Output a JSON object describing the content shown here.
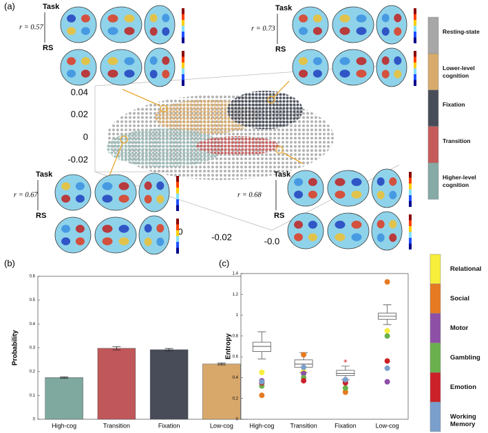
{
  "panel_labels": [
    "(a)",
    "(b)",
    "(c)"
  ],
  "panel_a": {
    "z_ticks": [
      "0.04",
      "0.02",
      "0",
      "-0.02"
    ],
    "floor_ticks": [
      "0",
      "-0.02",
      "-0.0"
    ],
    "brain_groups": [
      {
        "r": "r = 0.57",
        "labels": [
          "Task",
          "RS"
        ]
      },
      {
        "r": "r = 0.73",
        "labels": [
          "Task",
          "RS"
        ]
      },
      {
        "r": "r = 0.67",
        "labels": [
          "Task",
          "RS"
        ]
      },
      {
        "r": "r = 0.68",
        "labels": [
          "Task",
          "RS"
        ]
      }
    ],
    "legend": [
      {
        "name": "Resting-state",
        "color": "#a7a7a7"
      },
      {
        "name": "Lower-level cognition",
        "color": "#d8ab6c"
      },
      {
        "name": "Fixation",
        "color": "#474c59"
      },
      {
        "name": "Transition",
        "color": "#c65a5a"
      },
      {
        "name": "Higher-level cognition",
        "color": "#86aaa6"
      }
    ]
  },
  "chart_data": [
    {
      "type": "bar",
      "ylabel": "Probability",
      "categories": [
        "High-cog",
        "Transition",
        "Fixation",
        "Low-cog"
      ],
      "values": [
        0.175,
        0.298,
        0.292,
        0.232
      ],
      "errors": [
        0.003,
        0.007,
        0.005,
        0.004
      ],
      "colors": [
        "#7fa89f",
        "#c0575a",
        "#474c58",
        "#d8a86b"
      ],
      "ylim": [
        0,
        0.6
      ],
      "yticks": [
        0,
        0.1,
        0.2,
        0.3,
        0.4,
        0.5,
        0.6
      ]
    },
    {
      "type": "box",
      "ylabel": "Entropy",
      "categories": [
        "High-cog",
        "Transition",
        "Fixation",
        "Low-cog"
      ],
      "whislo": [
        0.58,
        0.45,
        0.38,
        0.91
      ],
      "q1": [
        0.65,
        0.5,
        0.42,
        0.96
      ],
      "med": [
        0.7,
        0.53,
        0.44,
        0.99
      ],
      "q3": [
        0.74,
        0.57,
        0.47,
        1.02
      ],
      "whishi": [
        0.84,
        0.64,
        0.51,
        1.1
      ],
      "fliers": [
        null,
        null,
        0.56,
        0.85
      ],
      "flier_color": "#e0242a",
      "ylim": [
        0,
        1.4
      ],
      "yticks": [
        0,
        0.2,
        0.4,
        0.6,
        0.8,
        1,
        1.2,
        1.4
      ],
      "series": [
        {
          "name": "Relational",
          "color": "#f6ee3a",
          "values": [
            0.45,
            0.46,
            0.27,
            0.85
          ]
        },
        {
          "name": "Social",
          "color": "#e67a22",
          "values": [
            0.23,
            0.62,
            0.26,
            1.32
          ]
        },
        {
          "name": "Motor",
          "color": "#8e4fa6",
          "values": [
            0.37,
            0.44,
            0.36,
            0.36
          ]
        },
        {
          "name": "Gambling",
          "color": "#6ab04c",
          "values": [
            0.32,
            0.4,
            0.3,
            0.8
          ]
        },
        {
          "name": "Emotion",
          "color": "#cc2128",
          "values": [
            0.35,
            0.37,
            0.35,
            0.56
          ]
        },
        {
          "name": "Working Memory",
          "color": "#7a9fcc",
          "values": [
            0.36,
            0.5,
            0.38,
            0.49
          ]
        }
      ]
    }
  ]
}
